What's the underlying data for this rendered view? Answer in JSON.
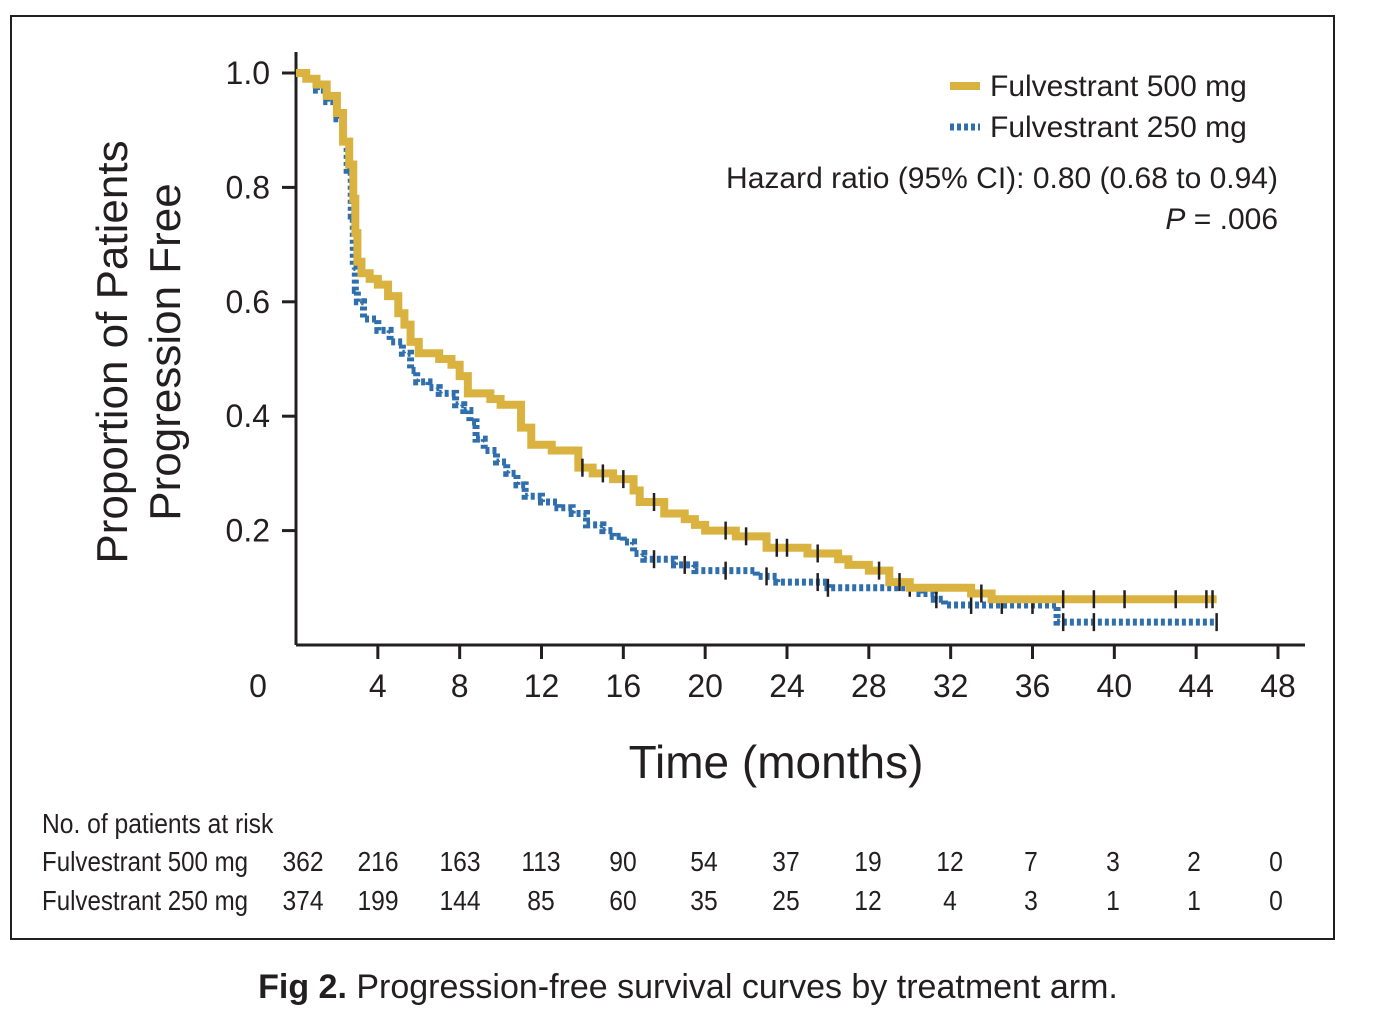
{
  "chart_data": {
    "type": "line",
    "subtype": "kaplan-meier",
    "ylabel": [
      "Proportion of Patients",
      "Progression Free"
    ],
    "xlabel": "Time (months)",
    "xlim": [
      0,
      48
    ],
    "ylim": [
      0,
      1.0
    ],
    "xticks": [
      "0",
      "4",
      "8",
      "12",
      "16",
      "20",
      "24",
      "28",
      "32",
      "36",
      "40",
      "44",
      "48"
    ],
    "yticks": [
      "0.2",
      "0.4",
      "0.6",
      "0.8",
      "1.0"
    ],
    "ytick_values": [
      0.2,
      0.4,
      0.6,
      0.8,
      1.0
    ],
    "series": [
      {
        "name": "Fulvestrant 500 mg",
        "color": "#d9b23f",
        "style": "solid",
        "steps": [
          [
            0,
            1.0
          ],
          [
            0.5,
            0.99
          ],
          [
            1.0,
            0.98
          ],
          [
            1.5,
            0.96
          ],
          [
            2.0,
            0.93
          ],
          [
            2.3,
            0.88
          ],
          [
            2.6,
            0.84
          ],
          [
            2.8,
            0.78
          ],
          [
            2.9,
            0.72
          ],
          [
            3.0,
            0.67
          ],
          [
            3.2,
            0.65
          ],
          [
            3.6,
            0.64
          ],
          [
            4.0,
            0.63
          ],
          [
            4.5,
            0.61
          ],
          [
            5.0,
            0.58
          ],
          [
            5.3,
            0.56
          ],
          [
            5.6,
            0.53
          ],
          [
            6.0,
            0.51
          ],
          [
            7.0,
            0.5
          ],
          [
            7.6,
            0.49
          ],
          [
            8.0,
            0.47
          ],
          [
            8.4,
            0.44
          ],
          [
            9.5,
            0.43
          ],
          [
            10.0,
            0.42
          ],
          [
            11.0,
            0.38
          ],
          [
            11.5,
            0.35
          ],
          [
            12.5,
            0.34
          ],
          [
            13.8,
            0.31
          ],
          [
            14.5,
            0.3
          ],
          [
            15.5,
            0.29
          ],
          [
            16.5,
            0.27
          ],
          [
            16.8,
            0.25
          ],
          [
            18.0,
            0.23
          ],
          [
            19.0,
            0.22
          ],
          [
            19.5,
            0.21
          ],
          [
            20.0,
            0.2
          ],
          [
            21.5,
            0.19
          ],
          [
            23.0,
            0.17
          ],
          [
            25.0,
            0.16
          ],
          [
            26.5,
            0.15
          ],
          [
            27.0,
            0.14
          ],
          [
            28.0,
            0.13
          ],
          [
            29.0,
            0.11
          ],
          [
            30.0,
            0.1
          ],
          [
            33.0,
            0.09
          ],
          [
            34.0,
            0.08
          ],
          [
            45,
            0.08
          ]
        ],
        "censors": [
          14.0,
          15.0,
          16.0,
          17.5,
          21.0,
          22.0,
          23.5,
          24.0,
          25.5,
          28.5,
          29.5,
          33.5,
          37.5,
          39.0,
          40.5,
          43.0,
          44.5,
          44.8
        ]
      },
      {
        "name": "Fulvestrant 250 mg",
        "color": "#2f6fad",
        "style": "dotted",
        "steps": [
          [
            0,
            1.0
          ],
          [
            0.5,
            0.99
          ],
          [
            1.0,
            0.97
          ],
          [
            1.5,
            0.95
          ],
          [
            2.0,
            0.92
          ],
          [
            2.3,
            0.88
          ],
          [
            2.5,
            0.83
          ],
          [
            2.7,
            0.75
          ],
          [
            2.8,
            0.66
          ],
          [
            2.9,
            0.62
          ],
          [
            3.0,
            0.6
          ],
          [
            3.3,
            0.57
          ],
          [
            4.0,
            0.55
          ],
          [
            4.6,
            0.53
          ],
          [
            5.2,
            0.51
          ],
          [
            5.6,
            0.48
          ],
          [
            5.9,
            0.46
          ],
          [
            6.5,
            0.45
          ],
          [
            7.0,
            0.44
          ],
          [
            7.8,
            0.42
          ],
          [
            8.2,
            0.41
          ],
          [
            8.5,
            0.39
          ],
          [
            8.8,
            0.36
          ],
          [
            9.2,
            0.34
          ],
          [
            9.8,
            0.32
          ],
          [
            10.3,
            0.3
          ],
          [
            10.8,
            0.28
          ],
          [
            11.2,
            0.26
          ],
          [
            12.0,
            0.25
          ],
          [
            12.8,
            0.24
          ],
          [
            13.5,
            0.23
          ],
          [
            14.2,
            0.21
          ],
          [
            15.0,
            0.2
          ],
          [
            15.5,
            0.19
          ],
          [
            16.0,
            0.18
          ],
          [
            16.5,
            0.16
          ],
          [
            17.0,
            0.15
          ],
          [
            18.5,
            0.14
          ],
          [
            19.5,
            0.13
          ],
          [
            22.5,
            0.12
          ],
          [
            23.5,
            0.11
          ],
          [
            26.0,
            0.1
          ],
          [
            30.5,
            0.09
          ],
          [
            31.2,
            0.08
          ],
          [
            31.7,
            0.07
          ],
          [
            37.0,
            0.07
          ],
          [
            37.2,
            0.04
          ],
          [
            45,
            0.04
          ]
        ],
        "censors": [
          17.5,
          19.0,
          21.0,
          23.0,
          25.5,
          26.0,
          30.0,
          31.3,
          33.0,
          34.5,
          36.0,
          37.5,
          39.0,
          45.0
        ]
      }
    ],
    "annotations": {
      "hazard": "Hazard ratio (95% CI): 0.80 (0.68 to 0.94)",
      "p_italic": "P",
      "p_rest": " = .006"
    },
    "legend_position": "top-right",
    "risk_table": {
      "title": "No. of patients at risk",
      "rows": [
        {
          "label": "Fulvestrant 500 mg",
          "values": [
            "362",
            "216",
            "163",
            "113",
            "90",
            "54",
            "37",
            "19",
            "12",
            "7",
            "3",
            "2",
            "0"
          ]
        },
        {
          "label": "Fulvestrant 250 mg",
          "values": [
            "374",
            "199",
            "144",
            "85",
            "60",
            "35",
            "25",
            "12",
            "4",
            "3",
            "1",
            "1",
            "0"
          ]
        }
      ]
    }
  },
  "caption": {
    "label": "Fig 2.",
    "text": " Progression-free survival curves by treatment arm."
  }
}
